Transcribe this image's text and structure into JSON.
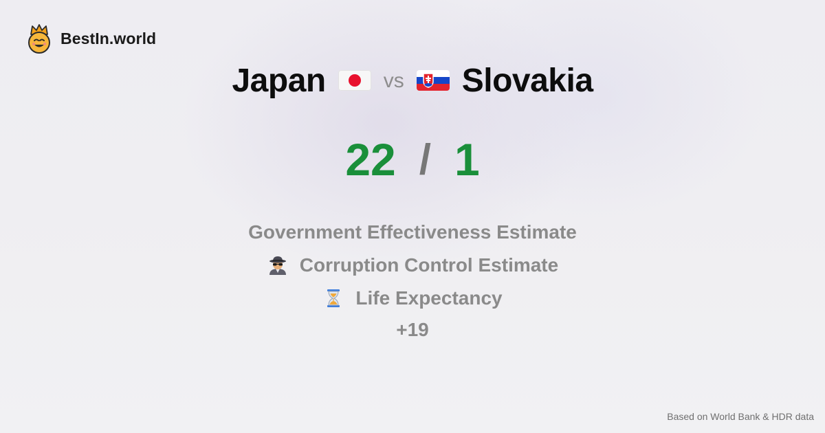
{
  "brand": {
    "name": "BestIn.world",
    "icon": "crown-smiley-icon"
  },
  "comparison": {
    "left_country": "Japan",
    "left_flag": "japan-flag-icon",
    "vs": "vs",
    "right_country": "Slovakia",
    "right_flag": "slovakia-flag-icon"
  },
  "score": {
    "left": "22",
    "separator": "/",
    "right": "1",
    "color": "#1a8f3a"
  },
  "metrics": [
    {
      "label": "Government Effectiveness Estimate",
      "icon": ""
    },
    {
      "label": "Corruption Control Estimate",
      "icon": "spy-icon"
    },
    {
      "label": "Life Expectancy",
      "icon": "hourglass-icon"
    }
  ],
  "more": "+19",
  "footer": "Based on World Bank & HDR data"
}
